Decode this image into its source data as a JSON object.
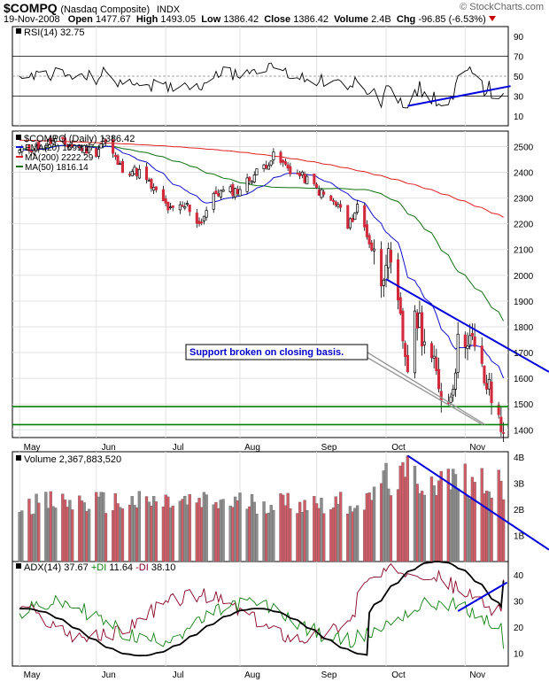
{
  "header": {
    "symbol": "$COMPQ",
    "name": "(Nasdaq Composite)",
    "exchange": "INDX",
    "date": "19-Nov-2008",
    "open_label": "Open",
    "open": "1477.67",
    "high_label": "High",
    "high": "1493.05",
    "low_label": "Low",
    "low": "1386.42",
    "close_label": "Close",
    "close": "1386.42",
    "volume_label": "Volume",
    "volume": "2.4B",
    "chg_label": "Chg",
    "chg": "-96.85 (-6.53%)",
    "brand": "© StockCharts.com"
  },
  "colors": {
    "up": "#7f7f7f",
    "down": "#d22a3c",
    "ema20": "#1010d0",
    "ma200": "#e02020",
    "ma50": "#107010",
    "support": "#008000",
    "trendline": "#0000dd",
    "annotation_text": "#0000cc",
    "vol_up": "#8c8c8c",
    "vol_down": "#cf5c66"
  },
  "chart_data": [
    {
      "type": "line",
      "panel": "rsi",
      "label": "RSI(14) 32.75",
      "ylim": [
        0,
        100
      ],
      "yticks": [
        10,
        30,
        50,
        70,
        90
      ],
      "reference_lines": [
        30,
        50,
        70
      ],
      "series": [
        {
          "name": "RSI(14)",
          "last": 32.75
        }
      ],
      "annotations": [
        {
          "type": "trendline",
          "from": [
            "2008-10-10",
            20
          ],
          "to": [
            "2008-11-19",
            40
          ]
        }
      ]
    },
    {
      "type": "candlestick",
      "panel": "price",
      "label": "$COMPQ (Daily) 1386.42",
      "ylim": [
        1370,
        2560
      ],
      "yticks": [
        1400,
        1500,
        1600,
        1700,
        1800,
        1900,
        2000,
        2100,
        2200,
        2300,
        2400,
        2500
      ],
      "x_months": [
        "May",
        "Jun",
        "Jul",
        "Aug",
        "Sep",
        "Oct",
        "Nov"
      ],
      "overlays": [
        {
          "name": "EMA(20)",
          "last": "1599.17",
          "color": "#1010d0"
        },
        {
          "name": "MA(200)",
          "last": "2222.29",
          "color": "#e02020"
        },
        {
          "name": "MA(50)",
          "last": "1816.14",
          "color": "#107010"
        }
      ],
      "close_points": [
        [
          "2008-05-01",
          2480
        ],
        [
          "2008-05-15",
          2520
        ],
        [
          "2008-06-02",
          2480
        ],
        [
          "2008-06-05",
          2530
        ],
        [
          "2008-06-12",
          2420
        ],
        [
          "2008-06-20",
          2400
        ],
        [
          "2008-06-27",
          2320
        ],
        [
          "2008-07-03",
          2250
        ],
        [
          "2008-07-10",
          2270
        ],
        [
          "2008-07-15",
          2200
        ],
        [
          "2008-07-22",
          2320
        ],
        [
          "2008-07-31",
          2330
        ],
        [
          "2008-08-08",
          2400
        ],
        [
          "2008-08-15",
          2460
        ],
        [
          "2008-08-22",
          2410
        ],
        [
          "2008-08-29",
          2370
        ],
        [
          "2008-09-05",
          2310
        ],
        [
          "2008-09-12",
          2260
        ],
        [
          "2008-09-15",
          2180
        ],
        [
          "2008-09-19",
          2270
        ],
        [
          "2008-09-29",
          1990
        ],
        [
          "2008-10-01",
          2090
        ],
        [
          "2008-10-06",
          1860
        ],
        [
          "2008-10-10",
          1650
        ],
        [
          "2008-10-14",
          1850
        ],
        [
          "2008-10-22",
          1600
        ],
        [
          "2008-10-27",
          1500
        ],
        [
          "2008-10-31",
          1720
        ],
        [
          "2008-11-04",
          1780
        ],
        [
          "2008-11-10",
          1620
        ],
        [
          "2008-11-14",
          1520
        ],
        [
          "2008-11-19",
          1386.42
        ]
      ],
      "support_lines": [
        1490,
        1420
      ],
      "annotations": [
        {
          "type": "text",
          "text": "Support broken on closing basis."
        },
        {
          "type": "trendline",
          "from": [
            "2008-10-01",
            1985
          ],
          "to": [
            "2008-11-19",
            1620
          ]
        }
      ]
    },
    {
      "type": "bar",
      "panel": "volume",
      "label": "Volume 2,367,883,520",
      "ylim": [
        0,
        4.2
      ],
      "yticks_labels": [
        "1B",
        "2B",
        "3B",
        "4B"
      ],
      "yticks": [
        1,
        2,
        3,
        4
      ],
      "annotations": [
        {
          "type": "trendline",
          "from": [
            "2008-10-10",
            4.05
          ],
          "to": [
            "2008-11-19",
            0.7
          ]
        }
      ]
    },
    {
      "type": "line",
      "panel": "adx",
      "label": "ADX(14) 37.67 +DI 11.64 -DI 38.10",
      "ylim": [
        5,
        45
      ],
      "yticks": [
        10,
        20,
        30,
        40
      ],
      "series": [
        {
          "name": "ADX(14)",
          "last": 37.67,
          "color": "#000000"
        },
        {
          "name": "+DI",
          "last": 11.64,
          "color": "#108010"
        },
        {
          "name": "-DI",
          "last": 38.1,
          "color": "#880022"
        }
      ],
      "annotations": [
        {
          "type": "trendline",
          "from": [
            "2008-10-31",
            26
          ],
          "to": [
            "2008-11-19",
            37
          ]
        }
      ]
    }
  ],
  "panels": {
    "rsi": {
      "name": "RSI(14)",
      "value": "32.75"
    },
    "price": {
      "title": "$COMPQ (Daily)",
      "value": "1386.42",
      "legend": [
        {
          "name": "EMA(20)",
          "value": "1599.17"
        },
        {
          "name": "MA(200)",
          "value": "2222.29"
        },
        {
          "name": "MA(50)",
          "value": "1816.14"
        }
      ],
      "annotation": "Support broken on closing basis."
    },
    "volume": {
      "name": "Volume",
      "value": "2,367,883,520"
    },
    "adx": {
      "name": "ADX(14)",
      "value": "37.67",
      "pdi_name": "+DI",
      "pdi": "11.64",
      "mdi_name": "-DI",
      "mdi": "38.10"
    }
  }
}
